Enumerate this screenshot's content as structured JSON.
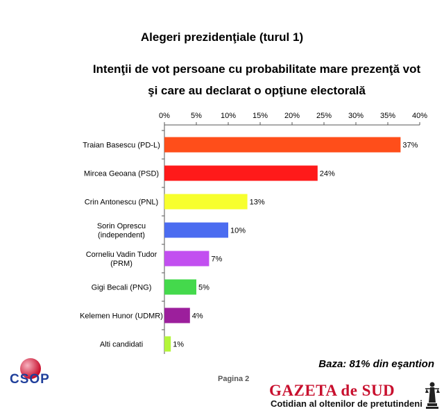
{
  "title": "Alegeri prezidenţiale (turul 1)",
  "subtitle_line1": "Intenţii de vot persoane cu probabilitate mare prezenţă vot",
  "subtitle_line2": "şi care au declarat o opţiune electorală",
  "footnote": "Baza:  81% din eşantion",
  "page_label": "Pagina 2",
  "logo_text": "CSOP",
  "newspaper": {
    "name": "GAZETA de SUD",
    "tagline": "Cotidian al oltenilor de pretutindeni"
  },
  "chart_data": {
    "type": "bar",
    "orientation": "horizontal",
    "axis_position": "top",
    "xlim": [
      0,
      40
    ],
    "ticks": [
      "0%",
      "5%",
      "10%",
      "15%",
      "20%",
      "25%",
      "30%",
      "35%",
      "40%"
    ],
    "grid": false,
    "categories": [
      [
        "Traian Basescu (PD-L)"
      ],
      [
        "Mircea Geoana (PSD)"
      ],
      [
        "Crin Antonescu (PNL)"
      ],
      [
        "Sorin Oprescu",
        "(independent)"
      ],
      [
        "Corneliu Vadin Tudor",
        "(PRM)"
      ],
      [
        "Gigi Becali (PNG)"
      ],
      [
        "Kelemen Hunor (UDMR)"
      ],
      [
        "Alti candidati"
      ]
    ],
    "values": [
      37,
      24,
      13,
      10,
      7,
      5,
      4,
      1
    ],
    "value_labels": [
      "37%",
      "24%",
      "13%",
      "10%",
      "7%",
      "5%",
      "4%",
      "1%"
    ],
    "colors": [
      "#ff4e1a",
      "#ff1a1a",
      "#f7ff2e",
      "#4b6cf0",
      "#c24ff0",
      "#44d94c",
      "#9c1f9c",
      "#b4f53a"
    ]
  }
}
